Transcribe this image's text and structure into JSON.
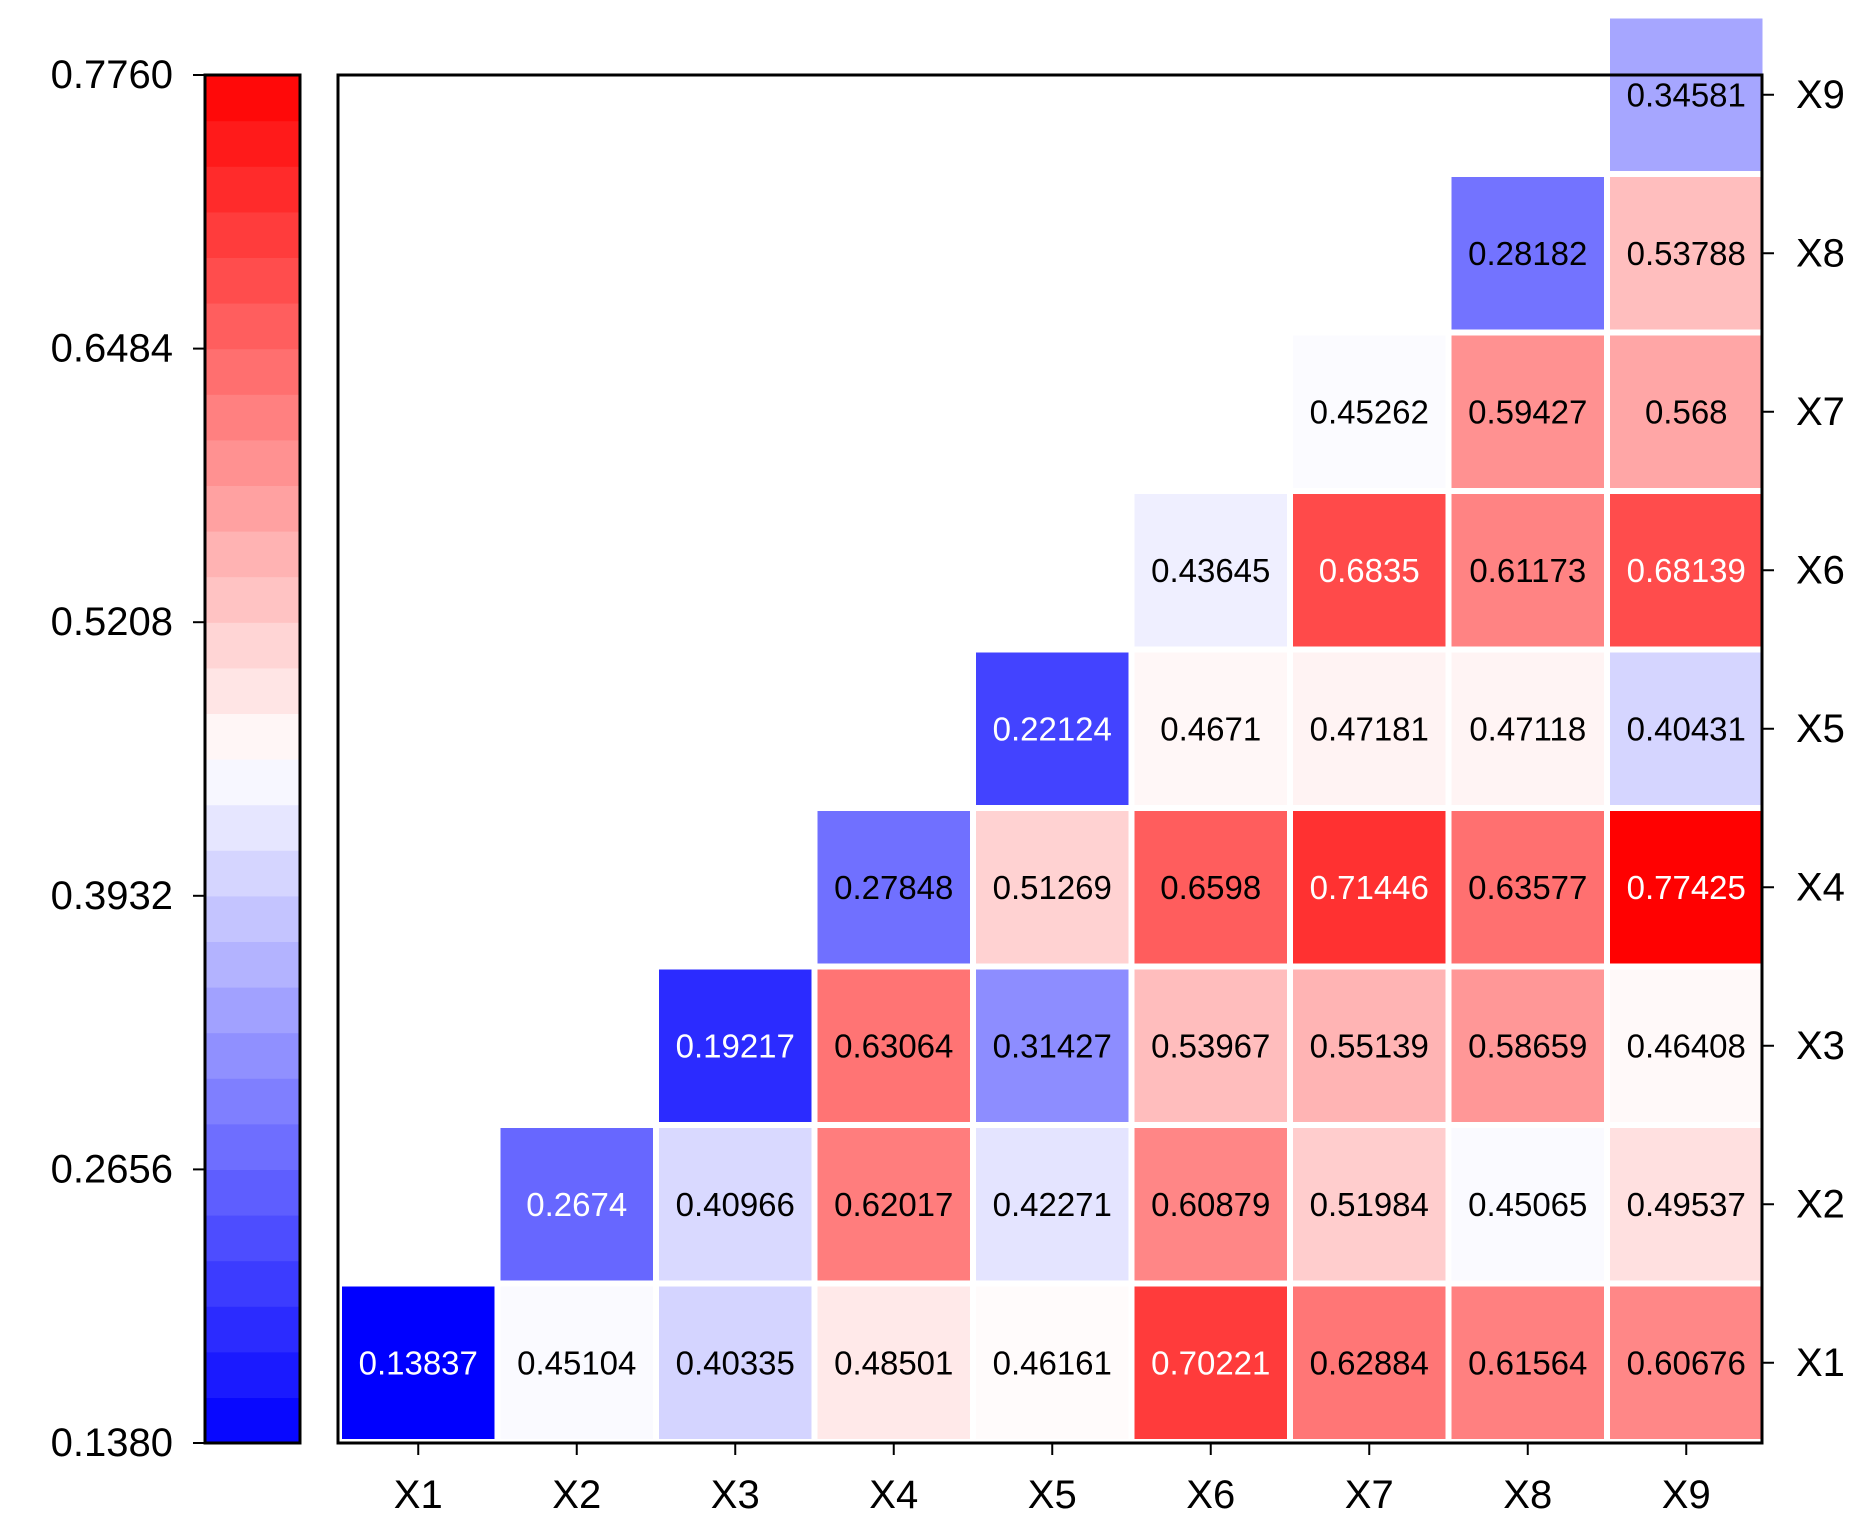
{
  "chart_data": {
    "type": "heatmap",
    "title": "",
    "xlabel": "",
    "ylabel": "",
    "categories": [
      "X1",
      "X2",
      "X3",
      "X4",
      "X5",
      "X6",
      "X7",
      "X8",
      "X9"
    ],
    "x_tick_labels": [
      "X1",
      "X2",
      "X3",
      "X4",
      "X5",
      "X6",
      "X7",
      "X8",
      "X9"
    ],
    "y_tick_labels": [
      "X1",
      "X2",
      "X3",
      "X4",
      "X5",
      "X6",
      "X7",
      "X8",
      "X9"
    ],
    "layout": "upper-triangle",
    "matrix_rows": [
      {
        "row": "X1",
        "values": [
          "0.13837",
          "0.45104",
          "0.40335",
          "0.48501",
          "0.46161",
          "0.70221",
          "0.62884",
          "0.61564",
          "0.60676"
        ]
      },
      {
        "row": "X2",
        "values": [
          null,
          "0.2674",
          "0.40966",
          "0.62017",
          "0.42271",
          "0.60879",
          "0.51984",
          "0.45065",
          "0.49537"
        ]
      },
      {
        "row": "X3",
        "values": [
          null,
          null,
          "0.19217",
          "0.63064",
          "0.31427",
          "0.53967",
          "0.55139",
          "0.58659",
          "0.46408"
        ]
      },
      {
        "row": "X4",
        "values": [
          null,
          null,
          null,
          "0.27848",
          "0.51269",
          "0.6598",
          "0.71446",
          "0.63577",
          "0.77425"
        ]
      },
      {
        "row": "X5",
        "values": [
          null,
          null,
          null,
          null,
          "0.22124",
          "0.4671",
          "0.47181",
          "0.47118",
          "0.40431"
        ]
      },
      {
        "row": "X6",
        "values": [
          null,
          null,
          null,
          null,
          null,
          "0.43645",
          "0.6835",
          "0.61173",
          "0.68139"
        ]
      },
      {
        "row": "X7",
        "values": [
          null,
          null,
          null,
          null,
          null,
          null,
          "0.45262",
          "0.59427",
          "0.568"
        ]
      },
      {
        "row": "X8",
        "values": [
          null,
          null,
          null,
          null,
          null,
          null,
          null,
          "0.28182",
          "0.53788"
        ]
      },
      {
        "row": "X9",
        "values": [
          null,
          null,
          null,
          null,
          null,
          null,
          null,
          null,
          "0.34581"
        ]
      }
    ],
    "colorbar": {
      "min": 0.138,
      "max": 0.776,
      "tick_labels": [
        "0.1380",
        "0.2656",
        "0.3932",
        "0.5208",
        "0.6484",
        "0.7760"
      ],
      "placement": "left",
      "colors": {
        "low": "#0000ff",
        "mid": "#ffffff",
        "high": "#ff0000"
      },
      "levels": 30
    }
  }
}
